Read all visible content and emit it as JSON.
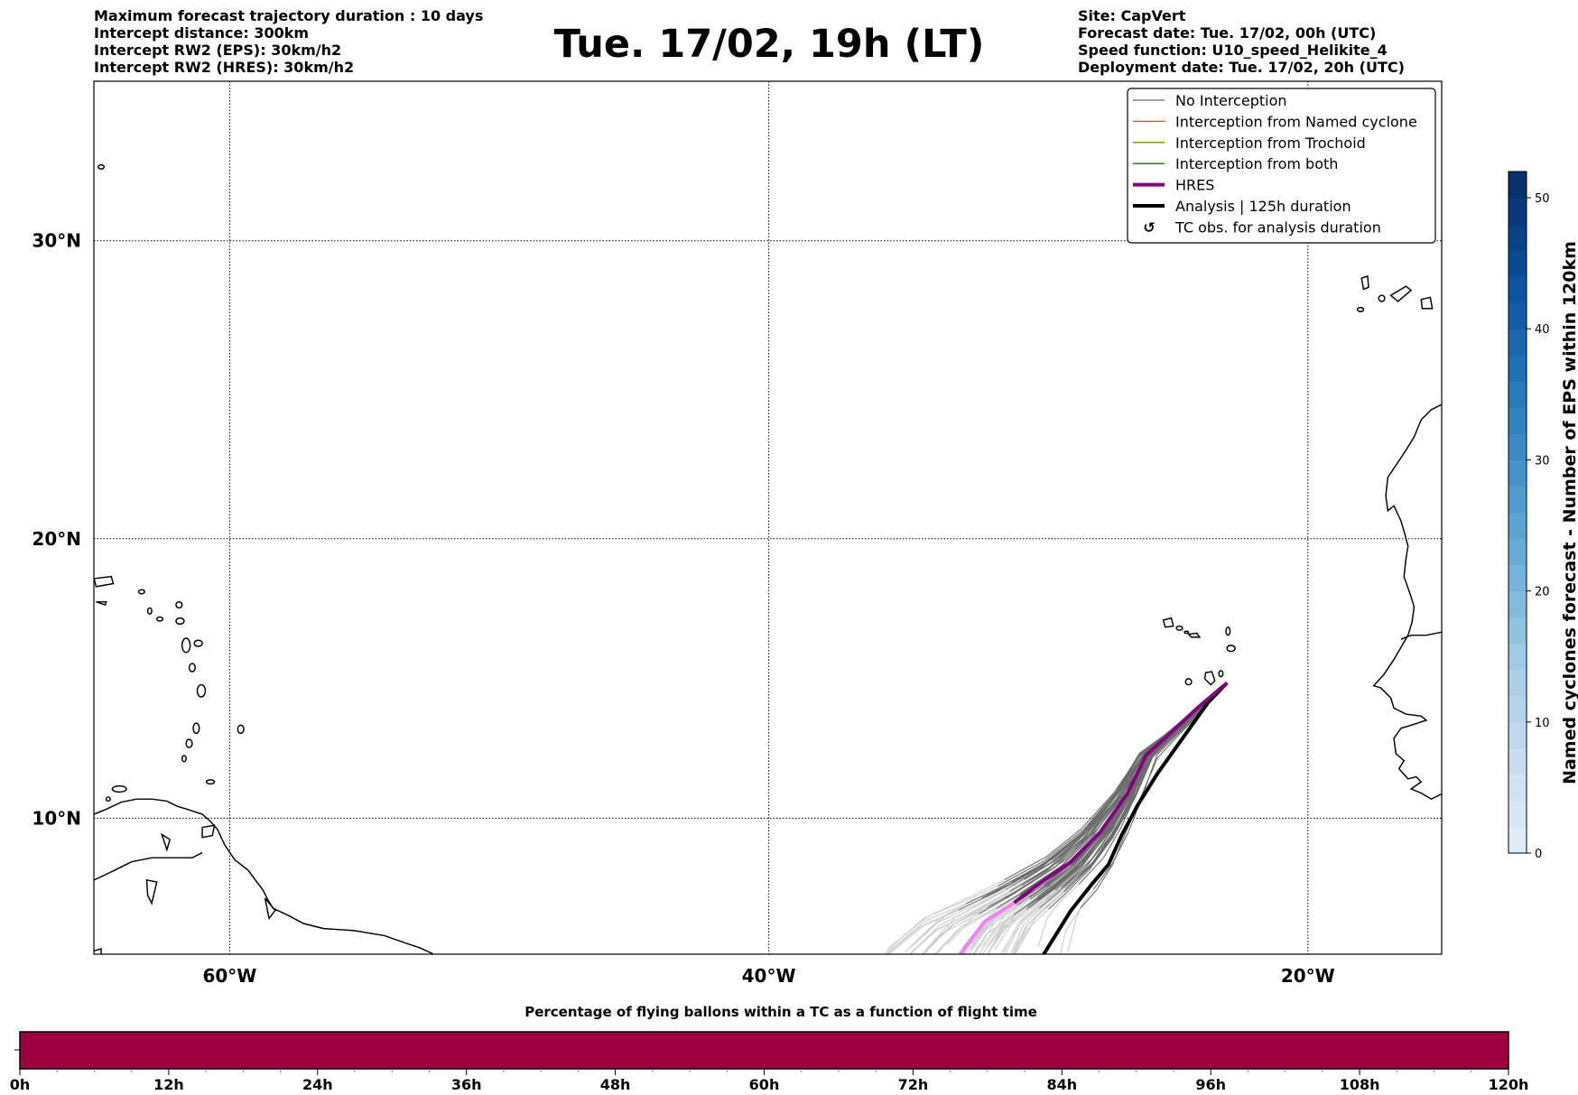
{
  "header": {
    "left": [
      "Maximum forecast trajectory duration : 10 days",
      "Intercept distance: 300km",
      "Intercept RW2 (EPS):  30km/h2",
      "Intercept RW2 (HRES): 30km/h2"
    ],
    "title": "Tue. 17/02, 19h (LT)",
    "right": [
      "Site: CapVert",
      "Forecast date: Tue. 17/02, 00h (UTC)",
      "Speed function: U10_speed_Helikite_4",
      "Deployment date: Tue. 17/02, 20h (UTC)"
    ]
  },
  "colors": {
    "no_interception": "#6b6b6b",
    "named_cyclone": "#ff4500",
    "trochoid": "#808000",
    "both": "#008000",
    "hres": "#800080",
    "hres_late": "#ee82ee",
    "analysis": "#000000",
    "bar_fill": "#9e003f"
  },
  "chart_data": [
    {
      "type": "map-trajectories",
      "title": "Tue. 17/02, 19h (LT)",
      "lon_range": [
        -65,
        -15
      ],
      "lat_range": [
        5,
        35
      ],
      "grid": true,
      "x_ticks": [
        {
          "value": -60,
          "label": "60°W"
        },
        {
          "value": -40,
          "label": "40°W"
        },
        {
          "value": -20,
          "label": "20°W"
        }
      ],
      "y_ticks": [
        {
          "value": 30,
          "label": "30°N"
        },
        {
          "value": 20,
          "label": "20°N"
        },
        {
          "value": 10,
          "label": "10°N"
        }
      ],
      "legend_position": "top-right",
      "legend": [
        {
          "label": "No Interception",
          "style": "no_interception"
        },
        {
          "label": "Interception from Named cyclone",
          "style": "named_cyclone"
        },
        {
          "label": "Interception from Trochoid",
          "style": "trochoid"
        },
        {
          "label": "Interception from both",
          "style": "both"
        },
        {
          "label": "HRES",
          "style": "hres"
        },
        {
          "label": "Analysis | 125h duration",
          "style": "analysis"
        },
        {
          "label": "TC obs. for analysis duration",
          "style": "marker",
          "marker": "↺"
        }
      ],
      "launch_point": {
        "lon": -23.0,
        "lat": 14.9
      },
      "hres_track": [
        [
          -23.0,
          14.9
        ],
        [
          -24.1,
          14.0
        ],
        [
          -25.2,
          13.0
        ],
        [
          -26.0,
          12.3
        ],
        [
          -26.7,
          10.9
        ],
        [
          -27.7,
          9.5
        ],
        [
          -28.8,
          8.4
        ],
        [
          -30.1,
          7.5
        ],
        [
          -30.9,
          6.9
        ],
        [
          -32.0,
          6.2
        ],
        [
          -32.9,
          5.0
        ]
      ],
      "analysis_track": [
        [
          -23.0,
          14.9
        ],
        [
          -23.7,
          14.2
        ],
        [
          -24.8,
          12.7
        ],
        [
          -25.6,
          11.6
        ],
        [
          -26.3,
          10.5
        ],
        [
          -26.9,
          9.4
        ],
        [
          -27.4,
          8.3
        ],
        [
          -28.0,
          7.6
        ],
        [
          -28.8,
          6.6
        ],
        [
          -29.3,
          5.8
        ],
        [
          -29.8,
          5.0
        ]
      ],
      "eps_member_count": 50
    },
    {
      "type": "colorbar",
      "label": "Named cyclones forecast - Number of EPS within 120km",
      "range": [
        0,
        52
      ],
      "ticks": [
        0,
        10,
        20,
        30,
        40,
        50
      ],
      "bins": 26
    },
    {
      "type": "bar",
      "title": "Percentage of flying ballons within a TC as a function of flight time",
      "x_ticks": [
        "0h",
        "12h",
        "24h",
        "36h",
        "48h",
        "60h",
        "72h",
        "84h",
        "96h",
        "108h",
        "120h"
      ],
      "x_range": [
        0,
        120
      ],
      "values_note": "uniform fill across full range",
      "fill_fraction": 1.0
    }
  ]
}
